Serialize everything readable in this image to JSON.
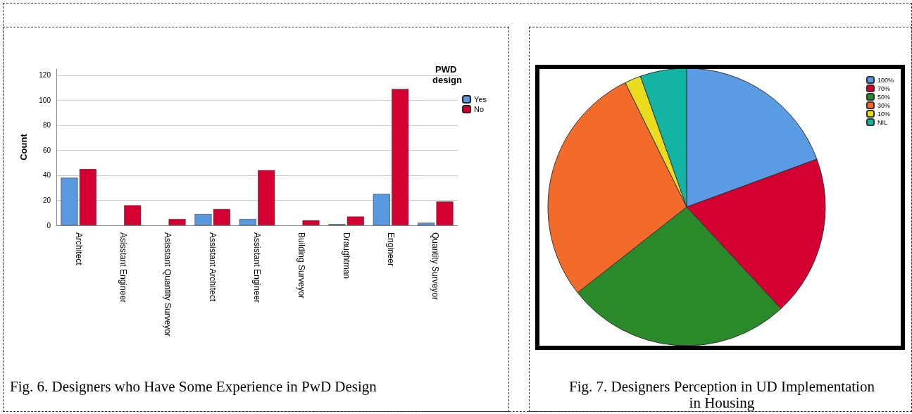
{
  "chart_data": [
    {
      "type": "bar",
      "categories": [
        "Architect",
        "Asisstant Engineer",
        "Asisstant Quantity Surveyor",
        "Assistant Architect",
        "Assistant Engineer",
        "Building Surveyor",
        "Draughtman",
        "Engineer",
        "Quantity Surveyor"
      ],
      "series": [
        {
          "name": "Yes",
          "color": "#5898e0",
          "values": [
            38,
            null,
            null,
            9,
            5,
            null,
            1,
            25,
            2
          ]
        },
        {
          "name": "No",
          "color": "#d40032",
          "values": [
            45,
            16,
            5,
            13,
            44,
            4,
            7,
            109,
            19
          ]
        }
      ],
      "ylabel": "Count",
      "legend_title": "PWD design",
      "ylim": [
        0,
        125
      ],
      "yticks": [
        0,
        20,
        40,
        60,
        80,
        100,
        120
      ],
      "grid": "y",
      "legend": "right",
      "annotations": [
        "Fig. 6. Designers who Have Some Experience in PwD Design"
      ]
    },
    {
      "type": "pie",
      "categories": [
        "100%",
        "70%",
        "50%",
        "30%",
        "10%",
        "NIL"
      ],
      "values": [
        19.4,
        18.7,
        26.3,
        28.3,
        1.9,
        5.4
      ],
      "colors": [
        "#5b9be4",
        "#d40032",
        "#2a8a2a",
        "#f26b2b",
        "#e8dc1c",
        "#13b4a4"
      ],
      "legend": "top right",
      "annotations": [
        "Fig. 7. Designers Perception in UD Implementation in Housing"
      ]
    }
  ]
}
